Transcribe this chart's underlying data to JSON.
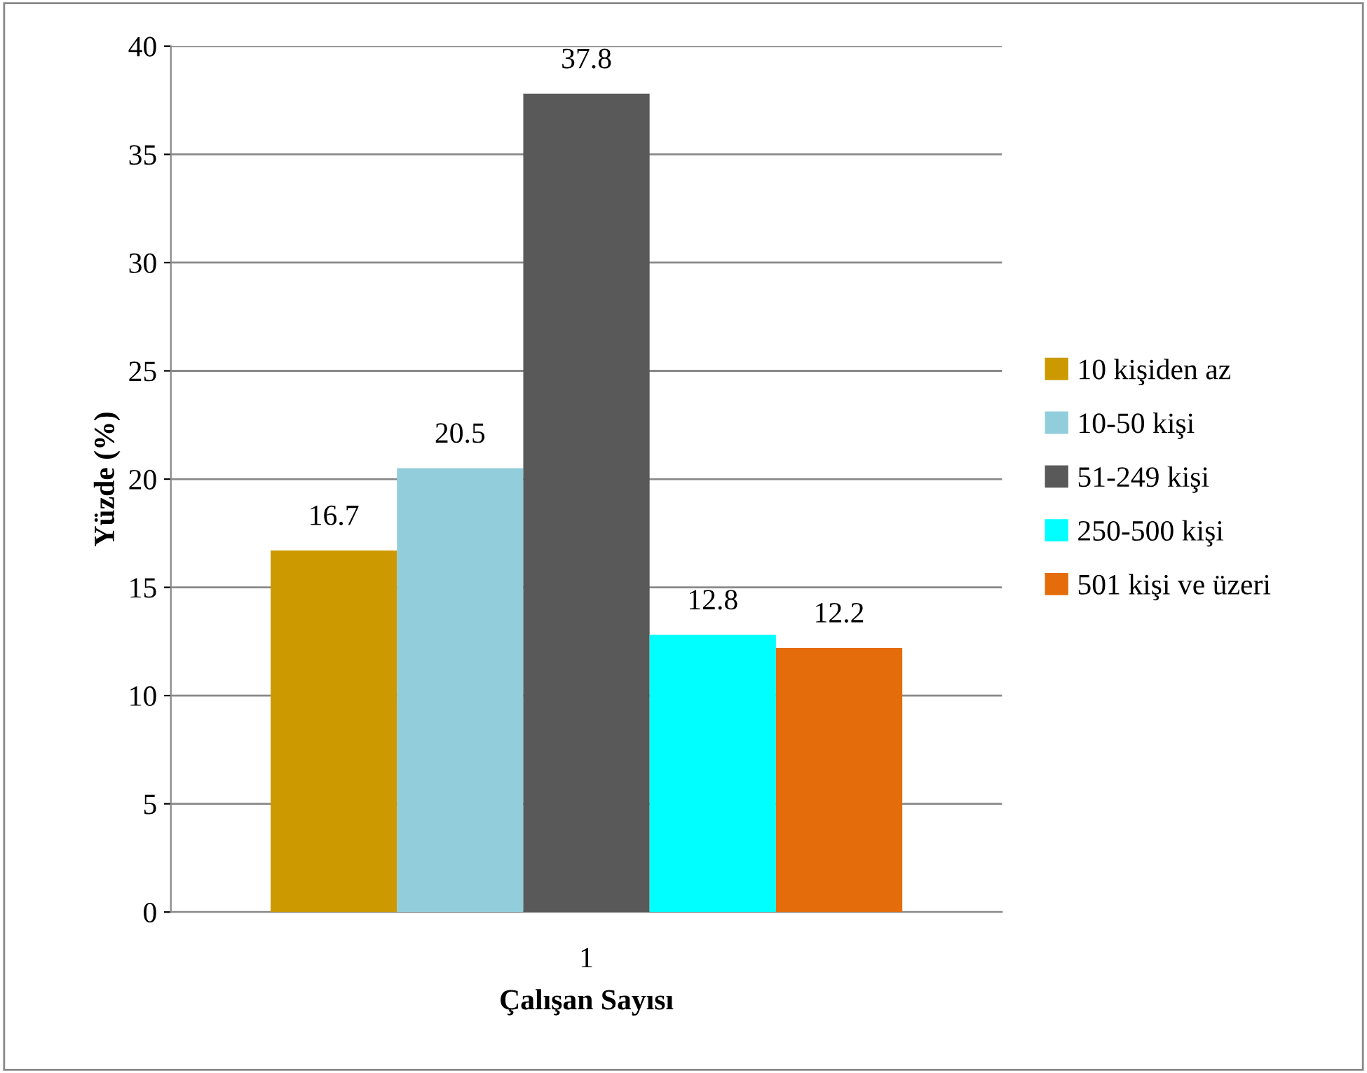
{
  "chart_data": {
    "type": "bar",
    "xlabel": "Çalışan Sayısı",
    "ylabel": "Yüzde (%)",
    "categories": [
      "1"
    ],
    "series": [
      {
        "name": "10 kişiden az",
        "color": "#cc9900",
        "values": [
          16.7
        ]
      },
      {
        "name": "10-50 kişi",
        "color": "#92cddc",
        "values": [
          20.5
        ]
      },
      {
        "name": "51-249 kişi",
        "color": "#595959",
        "values": [
          37.8
        ]
      },
      {
        "name": "250-500 kişi",
        "color": "#00ffff",
        "values": [
          12.8
        ]
      },
      {
        "name": "501 kişi ve üzeri",
        "color": "#e46c0a",
        "values": [
          12.2
        ]
      }
    ],
    "ylim": [
      0,
      40
    ],
    "yticks": [
      0,
      5,
      10,
      15,
      20,
      25,
      30,
      35,
      40
    ],
    "grid": "y",
    "legend": "right",
    "data_labels": true
  }
}
